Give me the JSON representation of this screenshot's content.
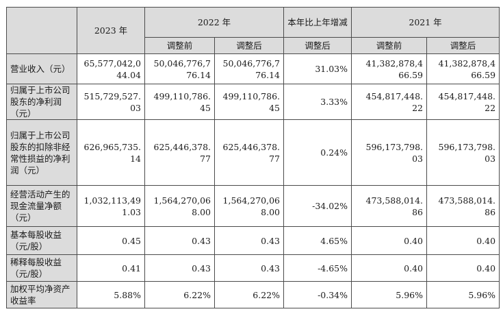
{
  "header": {
    "y2023": "2023 年",
    "y2022": "2022 年",
    "change": "本年比上年增减",
    "y2021": "2021 年",
    "before_2022": "调整前",
    "after_2022": "调整后",
    "after_change": "调整后",
    "before_2021": "调整前",
    "after_2021": "调整后"
  },
  "rows": [
    {
      "label": "营业收入（元）",
      "v2023": [
        "65,577,042,0",
        "44.04"
      ],
      "v2022_before": [
        "50,046,776,7",
        "76.14"
      ],
      "v2022_after": [
        "50,046,776,7",
        "76.14"
      ],
      "change": "31.03%",
      "v2021_before": [
        "41,382,878,4",
        "66.59"
      ],
      "v2021_after": [
        "41,382,878,4",
        "66.59"
      ]
    },
    {
      "label": "归属于上市公司股东的净利润（元）",
      "v2023": [
        "515,729,527.",
        "03"
      ],
      "v2022_before": [
        "499,110,786.",
        "45"
      ],
      "v2022_after": [
        "499,110,786.",
        "45"
      ],
      "change": "3.33%",
      "v2021_before": [
        "454,817,448.",
        "22"
      ],
      "v2021_after": [
        "454,817,448.",
        "22"
      ]
    },
    {
      "label": "归属于上市公司股东的扣除非经常性损益的净利润（元）",
      "v2023": [
        "626,965,735.",
        "14"
      ],
      "v2022_before": [
        "625,446,378.",
        "77"
      ],
      "v2022_after": [
        "625,446,378.",
        "77"
      ],
      "change": "0.24%",
      "v2021_before": [
        "596,173,798.",
        "03"
      ],
      "v2021_after": [
        "596,173,798.",
        "03"
      ]
    },
    {
      "label": "经营活动产生的现金流量净额（元）",
      "v2023": [
        "1,032,113,49",
        "1.03"
      ],
      "v2022_before": [
        "1,564,270,06",
        "8.00"
      ],
      "v2022_after": [
        "1,564,270,06",
        "8.00"
      ],
      "change": "-34.02%",
      "v2021_before": [
        "473,588,014.",
        "86"
      ],
      "v2021_after": [
        "473,588,014.",
        "86"
      ]
    },
    {
      "label": "基本每股收益（元/股）",
      "v2023": [
        "0.45"
      ],
      "v2022_before": [
        "0.43"
      ],
      "v2022_after": [
        "0.43"
      ],
      "change": "4.65%",
      "v2021_before": [
        "0.40"
      ],
      "v2021_after": [
        "0.40"
      ]
    },
    {
      "label": "稀释每股收益（元/股）",
      "v2023": [
        "0.41"
      ],
      "v2022_before": [
        "0.43"
      ],
      "v2022_after": [
        "0.43"
      ],
      "change": "-4.65%",
      "v2021_before": [
        "0.40"
      ],
      "v2021_after": [
        "0.40"
      ]
    },
    {
      "label": "加权平均净资产收益率",
      "v2023": [
        "5.88%"
      ],
      "v2022_before": [
        "6.22%"
      ],
      "v2022_after": [
        "6.22%"
      ],
      "change": "-0.34%",
      "v2021_before": [
        "5.96%"
      ],
      "v2021_after": [
        "5.96%"
      ]
    }
  ]
}
